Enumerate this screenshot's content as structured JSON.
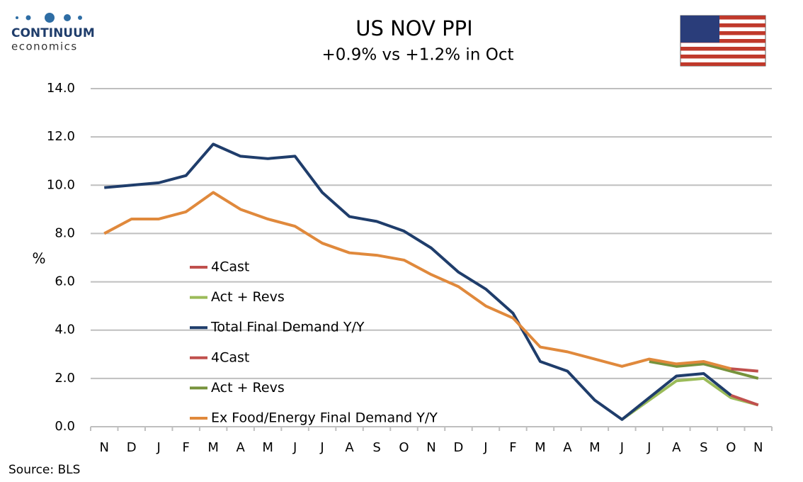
{
  "logo": {
    "name": "CONTINUUM",
    "tagline": "economics"
  },
  "source": "Source: BLS",
  "chart_data": {
    "type": "line",
    "title": "US NOV PPI",
    "subtitle": "+0.9% vs +1.2% in Oct",
    "y_label": "%",
    "categories": [
      "N",
      "D",
      "J",
      "F",
      "M",
      "A",
      "M",
      "J",
      "J",
      "A",
      "S",
      "O",
      "N",
      "D",
      "J",
      "F",
      "M",
      "A",
      "M",
      "J",
      "J",
      "A",
      "S",
      "O",
      "N"
    ],
    "ylim": [
      0,
      14
    ],
    "yticks": [
      {
        "value": 0,
        "label": "0.0"
      },
      {
        "value": 2,
        "label": "2.0"
      },
      {
        "value": 4,
        "label": "4.0"
      },
      {
        "value": 6,
        "label": "6.0"
      },
      {
        "value": 8,
        "label": "8.0"
      },
      {
        "value": 10,
        "label": "10.0"
      },
      {
        "value": 12,
        "label": "12.0"
      },
      {
        "value": 14,
        "label": "14.0"
      }
    ],
    "grid": true,
    "series": [
      {
        "name": "4Cast",
        "color": "#c0504d",
        "values": [
          null,
          null,
          null,
          null,
          null,
          null,
          null,
          null,
          null,
          null,
          null,
          null,
          null,
          null,
          null,
          null,
          null,
          null,
          null,
          null,
          null,
          null,
          null,
          1.3,
          0.9
        ]
      },
      {
        "name": "Act + Revs",
        "color": "#9bbb59",
        "values": [
          null,
          null,
          null,
          null,
          null,
          null,
          null,
          null,
          null,
          null,
          null,
          null,
          null,
          null,
          null,
          null,
          null,
          null,
          null,
          0.3,
          1.1,
          1.9,
          2.0,
          1.2,
          0.9
        ]
      },
      {
        "name": "Total Final Demand Y/Y",
        "color": "#1f3d6b",
        "values": [
          9.9,
          10.0,
          10.1,
          10.4,
          11.7,
          11.2,
          11.1,
          11.2,
          9.7,
          8.7,
          8.5,
          8.1,
          7.4,
          6.4,
          5.7,
          4.7,
          2.7,
          2.3,
          1.1,
          0.3,
          1.2,
          2.1,
          2.2,
          1.3,
          null
        ]
      },
      {
        "name": "4Cast",
        "color": "#c0504d",
        "values": [
          null,
          null,
          null,
          null,
          null,
          null,
          null,
          null,
          null,
          null,
          null,
          null,
          null,
          null,
          null,
          null,
          null,
          null,
          null,
          null,
          null,
          null,
          null,
          2.4,
          2.3
        ]
      },
      {
        "name": "Act + Revs",
        "color": "#77933c",
        "values": [
          null,
          null,
          null,
          null,
          null,
          null,
          null,
          null,
          null,
          null,
          null,
          null,
          null,
          null,
          null,
          null,
          null,
          null,
          null,
          null,
          2.7,
          2.5,
          2.6,
          2.3,
          2.0
        ]
      },
      {
        "name": "Ex Food/Energy Final Demand Y/Y",
        "color": "#e0893c",
        "values": [
          8.0,
          8.6,
          8.6,
          8.9,
          9.7,
          9.0,
          8.6,
          8.3,
          7.6,
          7.2,
          7.1,
          6.9,
          6.3,
          5.8,
          5.0,
          4.5,
          3.3,
          3.1,
          2.8,
          2.5,
          2.8,
          2.6,
          2.7,
          2.4,
          null
        ]
      }
    ]
  }
}
